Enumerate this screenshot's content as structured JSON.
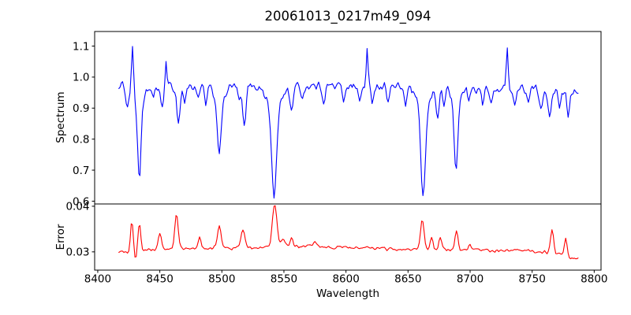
{
  "title": "20061013_0217m49_094",
  "colors": {
    "background": "#ffffff",
    "axis": "#000000",
    "spectrum_line": "#0000ff",
    "error_line": "#ff0000"
  },
  "chart_data": {
    "type": "line",
    "title": "20061013_0217m49_094",
    "xlabel": "Wavelength",
    "xlim": [
      8397.5,
      8805.5
    ],
    "x_ticks": [
      {
        "value": 8400,
        "label": "8400"
      },
      {
        "value": 8450,
        "label": "8450"
      },
      {
        "value": 8500,
        "label": "8500"
      },
      {
        "value": 8550,
        "label": "8550"
      },
      {
        "value": 8600,
        "label": "8600"
      },
      {
        "value": 8650,
        "label": "8650"
      },
      {
        "value": 8700,
        "label": "8700"
      },
      {
        "value": 8750,
        "label": "8750"
      },
      {
        "value": 8800,
        "label": "8800"
      }
    ],
    "x_data_start": 8417,
    "x_data_end": 8787,
    "x_step": 1.0,
    "grid": false,
    "legend": null,
    "panels": [
      {
        "name": "spectrum",
        "ylabel": "Spectrum",
        "color": "#0000ff",
        "ylim": [
          0.591,
          1.147
        ],
        "y_ticks": [
          {
            "value": 1.1,
            "label": "1.1"
          },
          {
            "value": 1.0,
            "label": "1.0"
          },
          {
            "value": 0.9,
            "label": "0.9"
          },
          {
            "value": 0.8,
            "label": "0.8"
          },
          {
            "value": 0.7,
            "label": "0.7"
          },
          {
            "value": 0.6,
            "label": "0.6"
          }
        ],
        "continuum_points": [
          [
            8417,
            0.971
          ],
          [
            8440,
            0.966
          ],
          [
            8470,
            0.969
          ],
          [
            8500,
            0.97
          ],
          [
            8530,
            0.971
          ],
          [
            8560,
            0.97
          ],
          [
            8590,
            0.972
          ],
          [
            8620,
            0.971
          ],
          [
            8650,
            0.967
          ],
          [
            8680,
            0.963
          ],
          [
            8710,
            0.962
          ],
          [
            8740,
            0.962
          ],
          [
            8770,
            0.96
          ],
          [
            8787,
            0.957
          ]
        ],
        "absorption_lines_center_depth_sigma": [
          [
            8424,
            0.065,
            1.1
          ],
          [
            8428,
            -0.155,
            0.8
          ],
          [
            8433.5,
            0.2,
            1.2
          ],
          [
            8433.5,
            0.095,
            3.2
          ],
          [
            8445,
            0.04,
            1.0
          ],
          [
            8452,
            0.075,
            1.1
          ],
          [
            8455,
            -0.095,
            0.7
          ],
          [
            8465,
            0.115,
            1.3
          ],
          [
            8470,
            0.05,
            1.0
          ],
          [
            8481,
            0.045,
            1.0
          ],
          [
            8487,
            0.06,
            1.0
          ],
          [
            8498,
            0.16,
            1.5
          ],
          [
            8498,
            0.055,
            3.8
          ],
          [
            8514,
            0.05,
            1.0
          ],
          [
            8518,
            0.135,
            1.3
          ],
          [
            8542.1,
            0.27,
            1.9
          ],
          [
            8542.1,
            0.085,
            5.0
          ],
          [
            8556,
            0.075,
            1.2
          ],
          [
            8565,
            0.04,
            1.0
          ],
          [
            8582,
            0.05,
            1.0
          ],
          [
            8598,
            0.045,
            1.0
          ],
          [
            8611,
            0.055,
            1.1
          ],
          [
            8617,
            -0.115,
            0.7
          ],
          [
            8621,
            0.05,
            1.0
          ],
          [
            8634,
            0.04,
            1.0
          ],
          [
            8648,
            0.055,
            1.1
          ],
          [
            8662.2,
            0.27,
            1.8
          ],
          [
            8662.2,
            0.08,
            4.5
          ],
          [
            8674,
            0.095,
            1.1
          ],
          [
            8679,
            0.05,
            1.0
          ],
          [
            8688.6,
            0.21,
            1.5
          ],
          [
            8688.6,
            0.05,
            3.0
          ],
          [
            8699,
            0.04,
            1.0
          ],
          [
            8710,
            0.05,
            1.0
          ],
          [
            8717,
            0.055,
            1.1
          ],
          [
            8730,
            -0.135,
            0.8
          ],
          [
            8736,
            0.055,
            1.1
          ],
          [
            8747,
            0.045,
            1.0
          ],
          [
            8757,
            0.075,
            1.2
          ],
          [
            8764,
            0.085,
            1.2
          ],
          [
            8772,
            0.065,
            1.1
          ],
          [
            8779,
            0.075,
            1.2
          ]
        ],
        "noise_amp": 0.017,
        "noise_seed": 1234
      },
      {
        "name": "error",
        "ylabel": "Error",
        "color": "#ff0000",
        "ylim": [
          0.026,
          0.0405
        ],
        "y_ticks": [
          {
            "value": 0.04,
            "label": "0.04"
          },
          {
            "value": 0.03,
            "label": "0.03"
          }
        ],
        "baseline_points": [
          [
            8417,
            0.03
          ],
          [
            8445,
            0.0304
          ],
          [
            8480,
            0.0307
          ],
          [
            8520,
            0.0309
          ],
          [
            8560,
            0.0312
          ],
          [
            8600,
            0.031
          ],
          [
            8640,
            0.0306
          ],
          [
            8680,
            0.0305
          ],
          [
            8720,
            0.0303
          ],
          [
            8750,
            0.0302
          ],
          [
            8770,
            0.0296
          ],
          [
            8782,
            0.0286
          ],
          [
            8787,
            0.0283
          ]
        ],
        "peaks_center_height_sigma": [
          [
            8427.5,
            0.0068,
            1.0
          ],
          [
            8430.5,
            -0.0022,
            0.7
          ],
          [
            8433.5,
            0.006,
            1.1
          ],
          [
            8450,
            0.0038,
            1.3
          ],
          [
            8463.5,
            0.0078,
            1.4
          ],
          [
            8482,
            0.0026,
            1.2
          ],
          [
            8498,
            0.0046,
            1.6
          ],
          [
            8517,
            0.0042,
            1.4
          ],
          [
            8542.5,
            0.0093,
            1.8
          ],
          [
            8549,
            0.0015,
            1.5
          ],
          [
            8556,
            0.0018,
            1.2
          ],
          [
            8575,
            0.0014,
            1.5
          ],
          [
            8661.5,
            0.0066,
            1.5
          ],
          [
            8669,
            0.0028,
            1.1
          ],
          [
            8676,
            0.0026,
            1.1
          ],
          [
            8689,
            0.0038,
            1.3
          ],
          [
            8700,
            0.0012,
            1.2
          ],
          [
            8766,
            0.005,
            1.3
          ],
          [
            8777,
            0.0038,
            1.1
          ]
        ],
        "noise_amp": 0.00045,
        "noise_seed": 99
      }
    ]
  }
}
